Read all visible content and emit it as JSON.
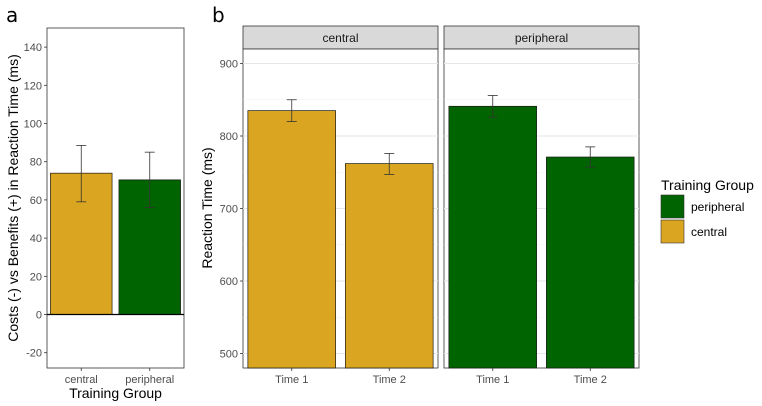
{
  "chart_data": [
    {
      "panel": "a",
      "type": "bar",
      "categories": [
        "central",
        "peripheral"
      ],
      "values": [
        74,
        70.5
      ],
      "error_bars": [
        [
          59,
          88.5
        ],
        [
          56,
          85
        ]
      ],
      "colors": [
        "#DAA520",
        "#006400"
      ],
      "xlabel": "Training Group",
      "ylabel": "Costs (-) vs Benefits (+) in Reaction Time (ms)",
      "ylim": [
        -28,
        150
      ],
      "yticks": [
        -20,
        0,
        20,
        40,
        60,
        80,
        100,
        120,
        140
      ],
      "zero_line": true,
      "grid": true
    },
    {
      "panel": "b",
      "type": "bar",
      "facets": [
        {
          "strip": "central",
          "categories": [
            "Time 1",
            "Time 2"
          ],
          "values": [
            835,
            762
          ],
          "error_bars": [
            [
              820,
              850
            ],
            [
              747,
              776
            ]
          ],
          "color": "#DAA520"
        },
        {
          "strip": "peripheral",
          "categories": [
            "Time 1",
            "Time 2"
          ],
          "values": [
            841,
            771
          ],
          "error_bars": [
            [
              826,
              856
            ],
            [
              757,
              785
            ]
          ],
          "color": "#006400"
        }
      ],
      "ylabel": "Reaction Time (ms)",
      "ylim": [
        480,
        920
      ],
      "yticks": [
        500,
        600,
        700,
        800,
        900
      ],
      "grid": true
    }
  ],
  "legend": {
    "title": "Training Group",
    "placement": "right",
    "items": [
      {
        "label": "peripheral",
        "color": "#006400"
      },
      {
        "label": "central",
        "color": "#DAA520"
      }
    ]
  }
}
